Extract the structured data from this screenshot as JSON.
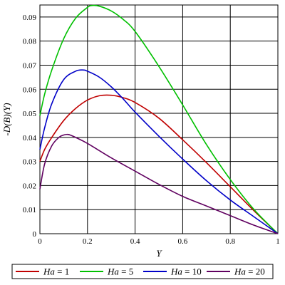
{
  "chart_data": {
    "type": "line",
    "title": "",
    "xlabel": "Y",
    "ylabel": "-D(B)(Y)",
    "xlim": [
      0,
      1
    ],
    "ylim": [
      0,
      0.095
    ],
    "x_ticks": [
      "0",
      "0.2",
      "0.4",
      "0.6",
      "0.8",
      "1"
    ],
    "y_ticks": [
      "0",
      "0.01",
      "0.02",
      "0.03",
      "0.04",
      "0.05",
      "0.06",
      "0.07",
      "0.08",
      "0.09"
    ],
    "grid": true,
    "legend_position": "bottom",
    "series": [
      {
        "name": "Ha = 1",
        "color": "#c00000",
        "x": [
          0,
          0.02,
          0.05,
          0.1,
          0.15,
          0.2,
          0.25,
          0.3,
          0.35,
          0.4,
          0.5,
          0.6,
          0.7,
          0.8,
          0.9,
          1.0
        ],
        "y": [
          0.03,
          0.035,
          0.04,
          0.047,
          0.052,
          0.0555,
          0.0573,
          0.0575,
          0.0565,
          0.0545,
          0.048,
          0.039,
          0.0295,
          0.0195,
          0.0095,
          0
        ]
      },
      {
        "name": "Ha = 5",
        "color": "#00c000",
        "x": [
          0,
          0.02,
          0.05,
          0.1,
          0.15,
          0.2,
          0.22,
          0.25,
          0.3,
          0.35,
          0.4,
          0.5,
          0.6,
          0.7,
          0.8,
          0.9,
          1.0
        ],
        "y": [
          0.049,
          0.058,
          0.068,
          0.081,
          0.0895,
          0.094,
          0.0948,
          0.0945,
          0.0925,
          0.089,
          0.084,
          0.0695,
          0.0535,
          0.037,
          0.0225,
          0.01,
          0
        ]
      },
      {
        "name": "Ha = 10",
        "color": "#0000c8",
        "x": [
          0,
          0.02,
          0.05,
          0.1,
          0.15,
          0.18,
          0.2,
          0.25,
          0.3,
          0.35,
          0.4,
          0.5,
          0.6,
          0.7,
          0.8,
          0.9,
          1.0
        ],
        "y": [
          0.035,
          0.044,
          0.054,
          0.064,
          0.0675,
          0.068,
          0.0675,
          0.065,
          0.061,
          0.056,
          0.0505,
          0.0405,
          0.031,
          0.022,
          0.014,
          0.007,
          0
        ]
      },
      {
        "name": "Ha = 20",
        "color": "#600060",
        "x": [
          0,
          0.02,
          0.05,
          0.08,
          0.1,
          0.12,
          0.15,
          0.2,
          0.3,
          0.4,
          0.5,
          0.6,
          0.7,
          0.8,
          0.9,
          1.0
        ],
        "y": [
          0.0185,
          0.029,
          0.0365,
          0.04,
          0.041,
          0.0412,
          0.04,
          0.0375,
          0.0315,
          0.026,
          0.0205,
          0.0155,
          0.0115,
          0.0075,
          0.0035,
          0
        ]
      }
    ]
  }
}
